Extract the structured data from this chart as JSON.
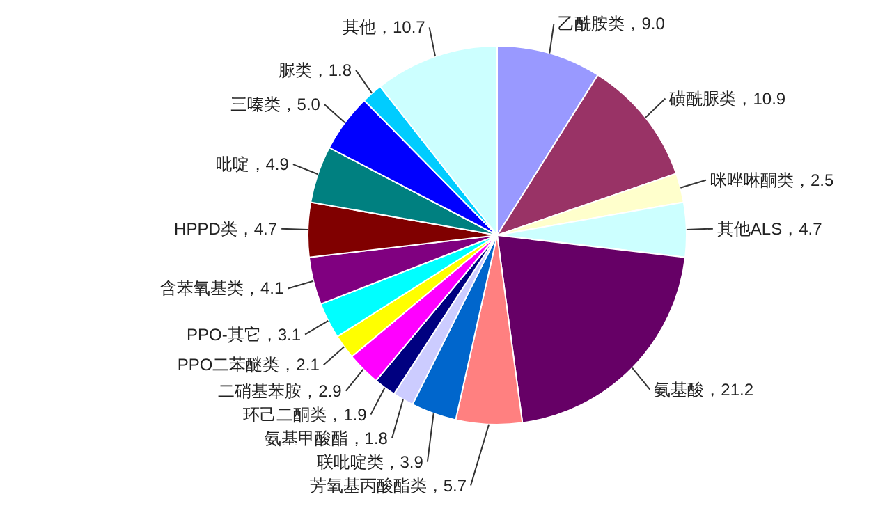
{
  "chart_data": {
    "type": "pie",
    "categories": [
      "乙酰胺类",
      "磺酰脲类",
      "咪唑啉酮类",
      "其他ALS",
      "氨基酸",
      "芳氧基丙酸酯类",
      "联吡啶类",
      "氨基甲酸酯",
      "环己二酮类",
      "二硝基苯胺",
      "PPO二苯醚类",
      "PPO-其它",
      "含苯氧基类",
      "HPPD类",
      "吡啶",
      "三嗪类",
      "脲类",
      "其他"
    ],
    "values": [
      9.0,
      10.9,
      2.5,
      4.7,
      21.2,
      5.7,
      3.9,
      1.8,
      1.9,
      2.9,
      2.1,
      3.1,
      4.1,
      4.7,
      4.9,
      5.0,
      1.8,
      10.7
    ],
    "value_labels": [
      "9.0",
      "10.9",
      "2.5",
      "4.7",
      "21.2",
      "5.7",
      "3.9",
      "1.8",
      "1.9",
      "2.9",
      "2.1",
      "3.1",
      "4.1",
      "4.7",
      "4.9",
      "5.0",
      "1.8",
      "10.7"
    ],
    "colors": [
      "#9999ff",
      "#993366",
      "#ffffcc",
      "#ccffff",
      "#660066",
      "#ff8080",
      "#0066cc",
      "#ccccff",
      "#000080",
      "#ff00ff",
      "#ffff00",
      "#00ffff",
      "#800080",
      "#800000",
      "#008080",
      "#0000ff",
      "#00ccff",
      "#ccffff"
    ]
  }
}
